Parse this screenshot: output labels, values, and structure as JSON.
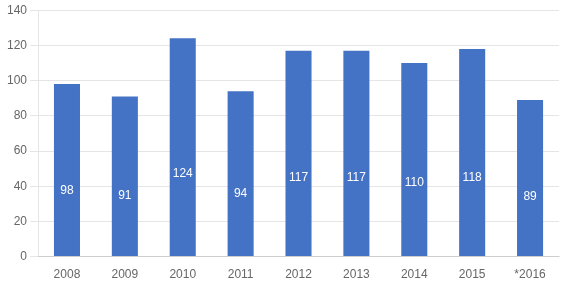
{
  "chart_data": {
    "type": "bar",
    "categories": [
      "2008",
      "2009",
      "2010",
      "2011",
      "2012",
      "2013",
      "2014",
      "2015",
      "*2016"
    ],
    "values": [
      98,
      91,
      124,
      94,
      117,
      117,
      110,
      118,
      89
    ],
    "color": "#4472C4",
    "ylim": [
      0,
      140
    ],
    "yticks": [
      0,
      20,
      40,
      60,
      80,
      100,
      120,
      140
    ],
    "grid": true,
    "data_labels": true
  }
}
